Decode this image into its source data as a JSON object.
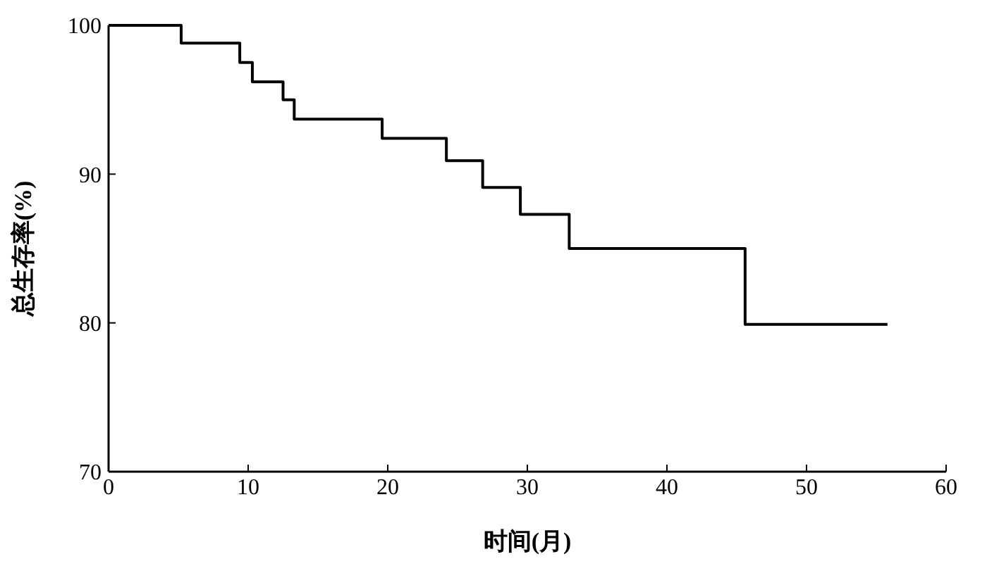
{
  "chart_data": {
    "type": "step",
    "xlabel": "时间(月)",
    "ylabel": "总生存率(%)",
    "x": [
      0,
      5.2,
      9.4,
      10.3,
      12.5,
      13.3,
      19.6,
      24.2,
      26.8,
      29.5,
      33.0,
      45.6,
      55.8
    ],
    "series": [
      {
        "color": "#000000",
        "values": [
          100,
          98.8,
          97.5,
          96.2,
          95.0,
          93.7,
          92.4,
          90.9,
          89.1,
          87.3,
          85.0,
          79.9,
          79.9
        ]
      }
    ],
    "xlim": [
      0,
      60
    ],
    "ylim": [
      70,
      100
    ],
    "xticks": [
      0,
      10,
      20,
      30,
      40,
      50,
      60
    ],
    "yticks": [
      70,
      80,
      90,
      100
    ],
    "grid": false
  }
}
